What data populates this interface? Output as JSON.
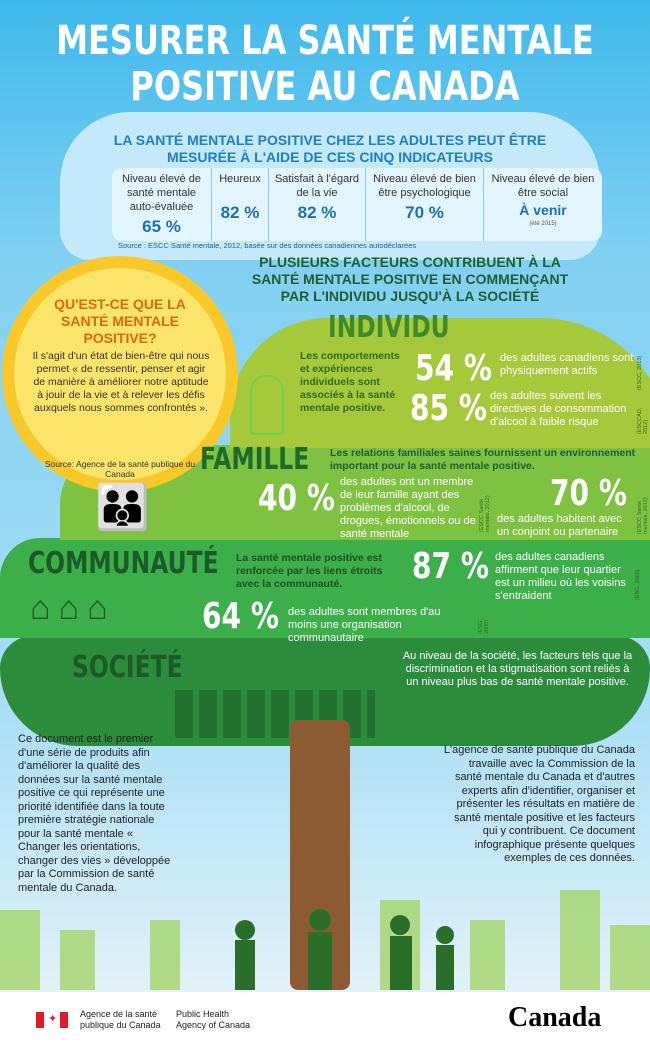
{
  "title": "MESURER LA SANTÉ MENTALE POSITIVE AU CANADA",
  "indicators": {
    "heading": "LA SANTÉ MENTALE POSITIVE CHEZ LES ADULTES PEUT ÊTRE MESURÉE À L'AIDE DE CES CINQ INDICATEURS",
    "items": [
      {
        "label": "Niveau élevé de santé mentale auto-évaluée",
        "value": "65 %"
      },
      {
        "label": "Heureux",
        "value": "82 %"
      },
      {
        "label": "Satisfait à l'égard de la vie",
        "value": "82 %"
      },
      {
        "label": "Niveau élevé de bien être psychologique",
        "value": "70 %"
      },
      {
        "label": "Niveau élevé de bien être social",
        "value": "À venir",
        "note": "(été 2015)"
      }
    ],
    "source": "Source : ESCC Santé mentale, 2012, basée sur des données canadiennes autodéclarées"
  },
  "factors_heading": "PLUSIEURS FACTEURS CONTRIBUENT À LA SANTÉ MENTALE POSITIVE EN COMMENÇANT PAR L'INDIVIDU JUSQU'À LA SOCIÉTÉ",
  "sun": {
    "question": "QU'EST-CE QUE LA SANTÉ MENTALE POSITIVE?",
    "text": "Il s'agit d'un état de bien-être qui nous permet « de ressentir, penser et agir de manière à améliorer notre aptitude à jouir de la vie et à relever les défis auxquels nous sommes confrontés ».",
    "source": "Source: Agence de la santé publique du Canada"
  },
  "individu": {
    "title": "INDIVIDU",
    "desc": "Les comportements et expériences individuels sont associés à la santé mentale positive.",
    "stats": [
      {
        "value": "54 %",
        "text": "des adultes canadiens sont physiquement actifs",
        "src": "(ESCC, 2013)"
      },
      {
        "value": "85 %",
        "text": "des adultes suivent les directives de consommation d'alcool à faible risque",
        "src": "(ESCCAD, 2012)"
      }
    ]
  },
  "famille": {
    "title": "FAMILLE",
    "desc": "Les relations familiales saines fournissent un environnement important pour la santé mentale positive.",
    "stats": [
      {
        "value": "40 %",
        "text": "des adultes ont un membre de leur famille ayant des problèmes d'alcool, de drogues, émotionnels ou de santé mentale",
        "src": "(ESCC Santé mentale, 2012)"
      },
      {
        "value": "70 %",
        "text": "des adultes habitent avec un conjoint ou partenaire",
        "src": "(ESCC Santé mentale, 2012)"
      }
    ]
  },
  "communaute": {
    "title": "COMMUNAUTÉ",
    "desc": "La santé mentale positive est renforcée par les liens étroits avec la communauté.",
    "stats": [
      {
        "value": "87 %",
        "text": "des adultes canadiens affirment que leur quartier est un milieu où les voisins s'entraident",
        "src": "(ESG, 2009)"
      },
      {
        "value": "64 %",
        "text": "des adultes sont membres d'au moins une organisation communautaire",
        "src": "(ESG, 2008)"
      }
    ]
  },
  "societe": {
    "title": "SOCIÉTÉ",
    "desc": "Au niveau de la société, les facteurs tels que la discrimination et la stigmatisation sont reliés à un niveau plus bas de santé mentale positive."
  },
  "bottom_left": "Ce document est le premier d'une série de produits afin d'améliorer la qualité des données sur la santé mentale positive ce qui représente une priorité identifiée dans la toute première stratégie nationale pour la santé mentale « Changer les orientations, changer des vies » développée par la Commission de santé mentale du Canada.",
  "bottom_right": "L'agence de santé publique du Canada travaille avec la Commission de la santé mentale du Canada et d'autres experts afin d'identifier, organiser et présenter les résultats en matière de santé mentale positive et les facteurs qui y contribuent. Ce document infographique présente quelques exemples de ces données.",
  "footer": {
    "agency_fr": "Agence de la santé publique du Canada",
    "agency_en": "Public Health Agency of Canada",
    "wordmark": "Canada"
  },
  "colors": {
    "sky": "#3fb9ec",
    "individu": "#a6c83b",
    "famille": "#7fc242",
    "communaute": "#3caf4a",
    "societe": "#2b8c3c",
    "sun": "#fbe46a",
    "title_blue": "#1f7fc1"
  }
}
